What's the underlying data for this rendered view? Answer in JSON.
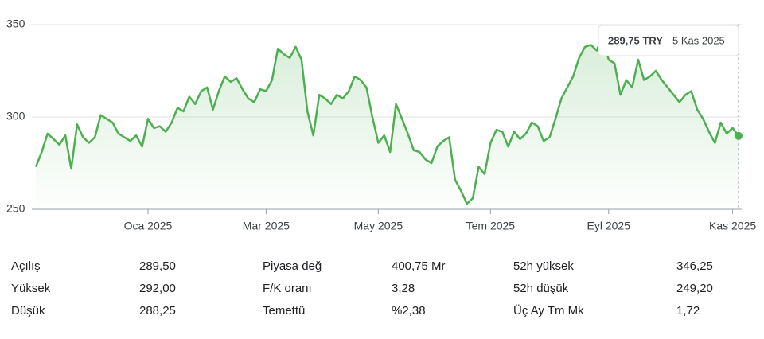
{
  "chart_data": {
    "type": "line",
    "categories": [
      null,
      null,
      null,
      null,
      null,
      null,
      null,
      null,
      null,
      null,
      null,
      null,
      null,
      null,
      null,
      null,
      null,
      null,
      null,
      "Oca 2025",
      null,
      null,
      null,
      null,
      null,
      null,
      null,
      null,
      null,
      null,
      null,
      null,
      null,
      null,
      null,
      null,
      null,
      null,
      null,
      "Mar 2025",
      null,
      null,
      null,
      null,
      null,
      null,
      null,
      null,
      null,
      null,
      null,
      null,
      null,
      null,
      null,
      null,
      null,
      null,
      "May 2025",
      null,
      null,
      null,
      null,
      null,
      null,
      null,
      null,
      null,
      null,
      null,
      null,
      null,
      null,
      null,
      null,
      null,
      null,
      "Tem 2025",
      null,
      null,
      null,
      null,
      null,
      null,
      null,
      null,
      null,
      null,
      null,
      null,
      null,
      null,
      null,
      null,
      null,
      null,
      null,
      "Eyl 2025",
      null,
      null,
      null,
      null,
      null,
      null,
      null,
      null,
      null,
      null,
      null,
      null,
      null,
      null,
      null,
      null,
      null,
      null,
      null,
      null,
      "Kas 2025",
      null
    ],
    "series": [
      {
        "color": "#4caf50",
        "values": [
          273,
          281,
          291,
          288,
          285,
          290,
          272,
          296,
          289,
          286,
          289,
          301,
          299,
          297,
          291,
          289,
          287,
          290,
          284,
          299,
          294,
          295,
          292,
          297,
          305,
          303,
          311,
          307,
          314,
          316,
          304,
          314,
          322,
          319,
          321,
          315,
          310,
          308,
          315,
          314,
          320,
          337,
          334,
          332,
          338,
          331,
          303,
          290,
          312,
          310,
          307,
          312,
          310,
          314,
          322,
          320,
          316,
          300,
          286,
          290,
          281,
          307,
          299,
          291,
          282,
          281,
          277,
          275,
          284,
          287,
          289,
          266,
          260,
          253,
          256,
          273,
          269,
          286,
          293,
          292,
          284,
          292,
          288,
          291,
          297,
          295,
          287,
          289,
          299,
          310,
          316,
          322,
          332,
          338,
          339,
          336,
          344,
          331,
          329,
          312,
          320,
          316,
          331,
          320,
          322,
          325,
          320,
          316,
          312,
          308,
          312,
          314,
          304,
          299,
          292,
          286,
          297,
          291,
          294,
          289.75
        ]
      }
    ],
    "ylim": [
      250,
      350
    ],
    "yticks": [
      250,
      300,
      350
    ],
    "grid": true,
    "tooltip": {
      "price": "289,75 TRY",
      "date": "5 Kas 2025"
    }
  },
  "stats": [
    [
      "Açılış",
      "289,50"
    ],
    [
      "Yüksek",
      "292,00"
    ],
    [
      "Düşük",
      "288,25"
    ],
    [
      "Piyasa değ",
      "400,75 Mr"
    ],
    [
      "F/K oranı",
      "3,28"
    ],
    [
      "Temettü",
      "%2,38"
    ],
    [
      "52h yüksek",
      "346,25"
    ],
    [
      "52h düşük",
      "249,20"
    ],
    [
      "Üç Ay Tm Mk",
      "1,72"
    ]
  ]
}
